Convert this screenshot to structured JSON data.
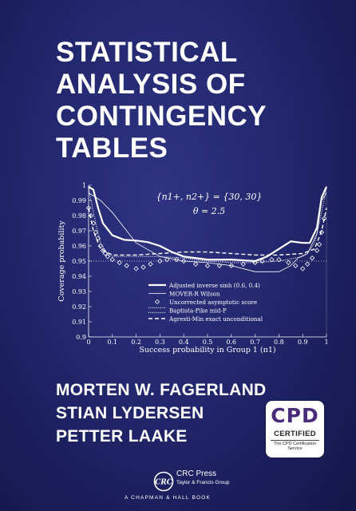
{
  "cover": {
    "title_lines": [
      "STATISTICAL",
      "ANALYSIS OF",
      "CONTINGENCY",
      "TABLES"
    ],
    "authors": [
      "MORTEN W. FAGERLAND",
      "STIAN LYDERSEN",
      "PETTER LAAKE"
    ],
    "cpd_badge": {
      "main": "CPD",
      "certified": "CERTIFIED",
      "service": "The CPD Certification Service"
    },
    "publisher": {
      "logo_text": "CRC",
      "name": "CRC Press",
      "group": "Taylor & Francis Group",
      "imprint": "A CHAPMAN & HALL BOOK"
    },
    "colors": {
      "background": "#21256b",
      "text": "#ffffff",
      "badge_purple": "#4a2a7a"
    }
  },
  "chart_data": {
    "type": "line",
    "annotation_lines": [
      "{n1+, n2+} = {30, 30}",
      "θ = 2.5"
    ],
    "xlabel": "Success probability in Group 1 (π1)",
    "ylabel": "Coverage probability",
    "xlim": [
      0,
      1
    ],
    "ylim": [
      0.9,
      1
    ],
    "x_ticks": [
      "0",
      "0.1",
      "0.2",
      "0.3",
      "0.4",
      "0.5",
      "0.6",
      "0.7",
      "0.8",
      "0.9",
      "1"
    ],
    "y_ticks": [
      "0.9",
      "0.91",
      "0.92",
      "0.93",
      "0.94",
      "0.95",
      "0.96",
      "0.97",
      "0.98",
      "0.99",
      "1"
    ],
    "reference_line": 0.95,
    "legend_position": "bottom-center",
    "series": [
      {
        "name": "Adjusted inverse sinh (0.6, 0.4)",
        "style": "solid-thick",
        "x": [
          0,
          0.02,
          0.04,
          0.06,
          0.1,
          0.15,
          0.2,
          0.25,
          0.3,
          0.35,
          0.4,
          0.5,
          0.6,
          0.7,
          0.75,
          0.8,
          0.85,
          0.9,
          0.93,
          0.96,
          0.98,
          1.0
        ],
        "y": [
          0.999,
          0.997,
          0.985,
          0.975,
          0.967,
          0.964,
          0.9635,
          0.9625,
          0.96,
          0.956,
          0.953,
          0.951,
          0.951,
          0.95,
          0.953,
          0.958,
          0.963,
          0.962,
          0.962,
          0.972,
          0.992,
          0.999
        ]
      },
      {
        "name": "MOVER-R Wilson",
        "style": "solid-thin",
        "x": [
          0,
          0.05,
          0.1,
          0.15,
          0.2,
          0.3,
          0.4,
          0.5,
          0.6,
          0.7,
          0.8,
          0.85,
          0.88,
          0.92,
          0.96,
          0.98,
          1.0
        ],
        "y": [
          0.995,
          0.99,
          0.982,
          0.972,
          0.962,
          0.953,
          0.95,
          0.949,
          0.947,
          0.943,
          0.943,
          0.947,
          0.952,
          0.955,
          0.968,
          0.99,
          0.995
        ]
      },
      {
        "name": "Uncorrected asymptotic score",
        "style": "diamonds",
        "x": [
          0,
          0.01,
          0.02,
          0.03,
          0.04,
          0.05,
          0.06,
          0.07,
          0.08,
          0.1,
          0.13,
          0.16,
          0.2,
          0.23,
          0.26,
          0.3,
          0.33,
          0.37,
          0.4,
          0.45,
          0.5,
          0.55,
          0.6,
          0.65,
          0.7,
          0.73,
          0.77,
          0.8,
          0.84,
          0.87,
          0.9,
          0.92,
          0.94,
          0.96,
          0.97,
          0.98,
          0.99
        ],
        "y": [
          0.985,
          0.98,
          0.975,
          0.969,
          0.965,
          0.96,
          0.957,
          0.955,
          0.953,
          0.951,
          0.949,
          0.947,
          0.945,
          0.946,
          0.948,
          0.95,
          0.951,
          0.951,
          0.95,
          0.948,
          0.947,
          0.947,
          0.947,
          0.948,
          0.949,
          0.95,
          0.951,
          0.951,
          0.949,
          0.947,
          0.945,
          0.948,
          0.952,
          0.957,
          0.961,
          0.969,
          0.978
        ]
      },
      {
        "name": "Baptista-Pike mid-P",
        "style": "dotted",
        "x": [
          0,
          0.01,
          0.03,
          0.05,
          0.08,
          0.1,
          0.2,
          0.3,
          0.4,
          0.5,
          0.6,
          0.7,
          0.8,
          0.9,
          0.92,
          0.95,
          0.97,
          0.99,
          1.0
        ],
        "y": [
          0.999,
          0.99,
          0.975,
          0.962,
          0.955,
          0.953,
          0.953,
          0.953,
          0.952,
          0.95,
          0.949,
          0.949,
          0.95,
          0.953,
          0.955,
          0.962,
          0.975,
          0.99,
          0.999
        ]
      },
      {
        "name": "Agresti-Min exact unconditional",
        "style": "dashed",
        "x": [
          0,
          0.02,
          0.05,
          0.1,
          0.2,
          0.3,
          0.4,
          0.5,
          0.6,
          0.7,
          0.8,
          0.9,
          0.95,
          0.98,
          1.0
        ],
        "y": [
          0.985,
          0.97,
          0.958,
          0.954,
          0.954,
          0.955,
          0.956,
          0.956,
          0.955,
          0.954,
          0.954,
          0.955,
          0.958,
          0.97,
          0.985
        ]
      }
    ]
  }
}
